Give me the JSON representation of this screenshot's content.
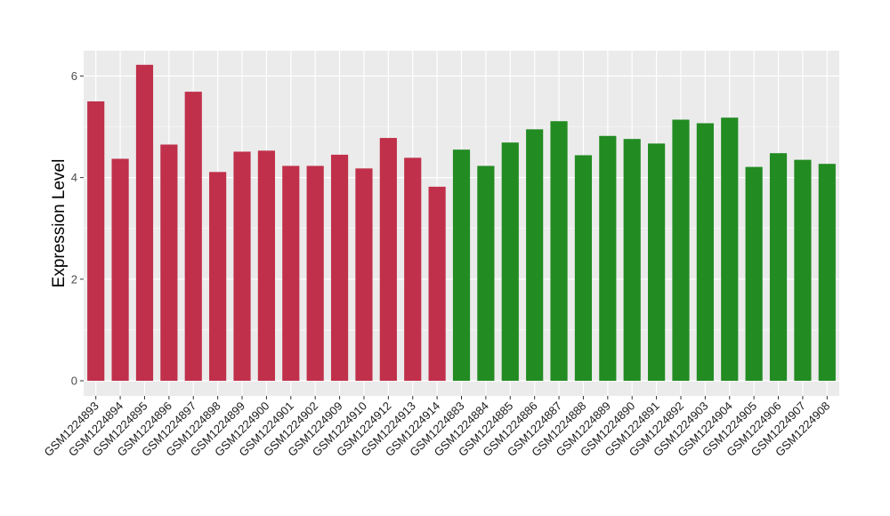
{
  "chart_data": {
    "type": "bar",
    "title": "",
    "xlabel": "",
    "ylabel": "Expression Level",
    "ylim": [
      0,
      6.5
    ],
    "yticks": [
      0,
      2,
      4,
      6
    ],
    "grid": true,
    "legend": "none",
    "colors": {
      "group1": "#C0304A",
      "group2": "#228B22",
      "panel_bg": "#EBEBEB",
      "grid": "#FFFFFF"
    },
    "categories": [
      "GSM1224893",
      "GSM1224894",
      "GSM1224895",
      "GSM1224896",
      "GSM1224897",
      "GSM1224898",
      "GSM1224899",
      "GSM1224900",
      "GSM1224901",
      "GSM1224902",
      "GSM1224909",
      "GSM1224910",
      "GSM1224912",
      "GSM1224913",
      "GSM1224914",
      "GSM1224883",
      "GSM1224884",
      "GSM1224885",
      "GSM1224886",
      "GSM1224887",
      "GSM1224888",
      "GSM1224889",
      "GSM1224890",
      "GSM1224891",
      "GSM1224892",
      "GSM1224903",
      "GSM1224904",
      "GSM1224905",
      "GSM1224906",
      "GSM1224907",
      "GSM1224908"
    ],
    "values": [
      5.5,
      4.37,
      6.22,
      4.65,
      5.69,
      4.11,
      4.51,
      4.53,
      4.23,
      4.23,
      4.45,
      4.18,
      4.78,
      4.39,
      3.82,
      4.55,
      4.23,
      4.69,
      4.95,
      5.11,
      4.44,
      4.82,
      4.76,
      4.67,
      5.14,
      5.07,
      5.18,
      4.21,
      4.48,
      4.35,
      4.27
    ],
    "groups": [
      1,
      1,
      1,
      1,
      1,
      1,
      1,
      1,
      1,
      1,
      1,
      1,
      1,
      1,
      1,
      2,
      2,
      2,
      2,
      2,
      2,
      2,
      2,
      2,
      2,
      2,
      2,
      2,
      2,
      2,
      2
    ]
  }
}
